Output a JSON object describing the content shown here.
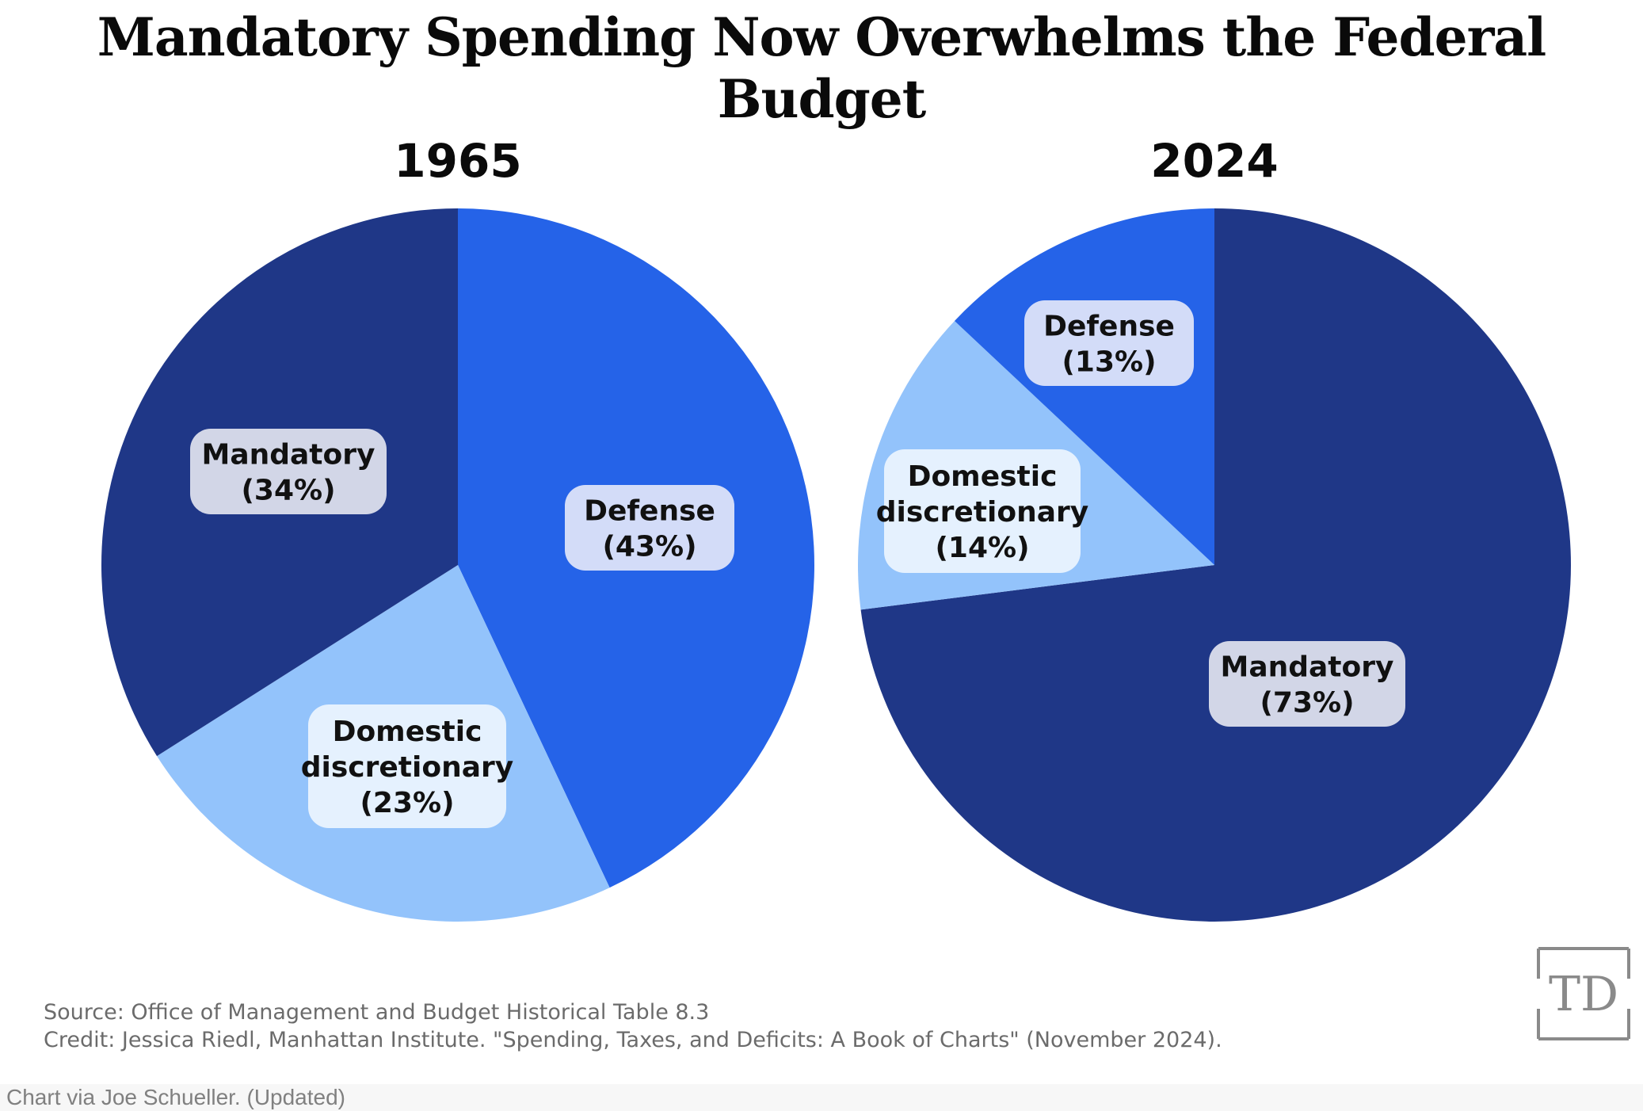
{
  "title": "Mandatory Spending Now Overwhelms the Federal Budget",
  "chart_data": [
    {
      "type": "pie",
      "title": "1965",
      "slices": [
        {
          "label_lines": [
            "Defense",
            "(43%)"
          ],
          "value": 43,
          "color": "#2563e8",
          "label_bg": "#d3dcf8"
        },
        {
          "label_lines": [
            "Domestic",
            "discretionary",
            "(23%)"
          ],
          "value": 23,
          "color": "#93c3fb",
          "label_bg": "#e5f1fe"
        },
        {
          "label_lines": [
            "Mandatory",
            "(34%)"
          ],
          "value": 34,
          "color": "#1f3787",
          "label_bg": "#d2d6e7"
        }
      ]
    },
    {
      "type": "pie",
      "title": "2024",
      "slices": [
        {
          "label_lines": [
            "Mandatory",
            "(73%)"
          ],
          "value": 73,
          "color": "#1f3787",
          "label_bg": "#d2d6e7"
        },
        {
          "label_lines": [
            "Domestic",
            "discretionary",
            "(14%)"
          ],
          "value": 14,
          "color": "#93c3fb",
          "label_bg": "#e5f1fe"
        },
        {
          "label_lines": [
            "Defense",
            "(13%)"
          ],
          "value": 13,
          "color": "#2563e8",
          "label_bg": "#d3dcf8"
        }
      ]
    }
  ],
  "footer": {
    "source": "Source: Office of Management and Budget Historical Table 8.3",
    "credit": "Credit: Jessica Riedl, Manhattan Institute. \"Spending, Taxes, and Deficits: A Book of Charts\" (November 2024).",
    "via": "Chart via Joe Schueller. (Updated)"
  },
  "logo": {
    "text": "TD",
    "icon": "td-logo-icon"
  }
}
